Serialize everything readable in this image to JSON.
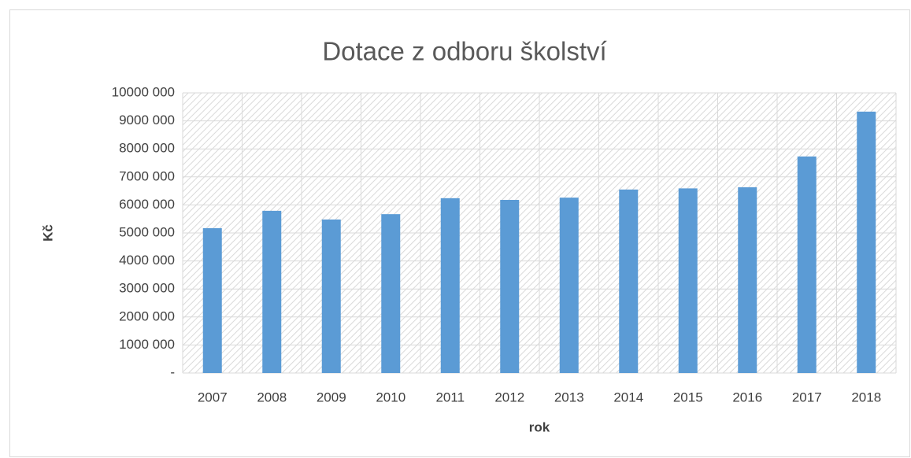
{
  "chart_data": {
    "type": "bar",
    "title": "Dotace z odboru školství",
    "x_label": "rok",
    "y_label": "Kč",
    "categories": [
      "2007",
      "2008",
      "2009",
      "2010",
      "2011",
      "2012",
      "2013",
      "2014",
      "2015",
      "2016",
      "2017",
      "2018"
    ],
    "values": [
      5170000,
      5790000,
      5480000,
      5670000,
      6240000,
      6180000,
      6260000,
      6550000,
      6590000,
      6630000,
      7730000,
      9330000
    ],
    "color": "#5b9bd5",
    "ylim": [
      0,
      10000000
    ],
    "yticks": [
      {
        "value": 0,
        "label": "-"
      },
      {
        "value": 1000000,
        "label": "1000 000"
      },
      {
        "value": 2000000,
        "label": "2000 000"
      },
      {
        "value": 3000000,
        "label": "3000 000"
      },
      {
        "value": 4000000,
        "label": "4000 000"
      },
      {
        "value": 5000000,
        "label": "5000 000"
      },
      {
        "value": 6000000,
        "label": "6000 000"
      },
      {
        "value": 7000000,
        "label": "7000 000"
      },
      {
        "value": 8000000,
        "label": "8000 000"
      },
      {
        "value": 9000000,
        "label": "9000 000"
      },
      {
        "value": 10000000,
        "label": "10000 000"
      }
    ],
    "grid": true
  }
}
